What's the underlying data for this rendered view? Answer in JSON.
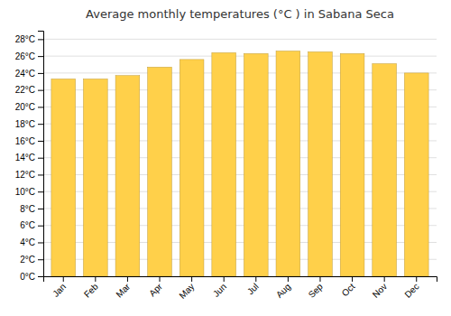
{
  "chart_data": {
    "type": "bar",
    "title": "Average monthly temperatures (°C ) in Sabana Seca",
    "categories": [
      "Jan",
      "Feb",
      "Mar",
      "Apr",
      "May",
      "Jun",
      "Jul",
      "Aug",
      "Sep",
      "Oct",
      "Nov",
      "Dec"
    ],
    "values": [
      23.3,
      23.3,
      23.7,
      24.7,
      25.6,
      26.4,
      26.3,
      26.6,
      26.5,
      26.3,
      25.1,
      24.0
    ],
    "color": "#FFD04A",
    "ylim": [
      0,
      29
    ],
    "yticks": [
      {
        "value": 0,
        "label": "0°C"
      },
      {
        "value": 2,
        "label": "2°C"
      },
      {
        "value": 4,
        "label": "4°C"
      },
      {
        "value": 6,
        "label": "6°C"
      },
      {
        "value": 8,
        "label": "8°C"
      },
      {
        "value": 10,
        "label": "10°C"
      },
      {
        "value": 12,
        "label": "12°C"
      },
      {
        "value": 14,
        "label": "14°C"
      },
      {
        "value": 16,
        "label": "16°C"
      },
      {
        "value": 18,
        "label": "18°C"
      },
      {
        "value": 20,
        "label": "20°C"
      },
      {
        "value": 22,
        "label": "22°C"
      },
      {
        "value": 24,
        "label": "24°C"
      },
      {
        "value": 26,
        "label": "26°C"
      },
      {
        "value": 28,
        "label": "28°C"
      }
    ],
    "grid": true
  }
}
